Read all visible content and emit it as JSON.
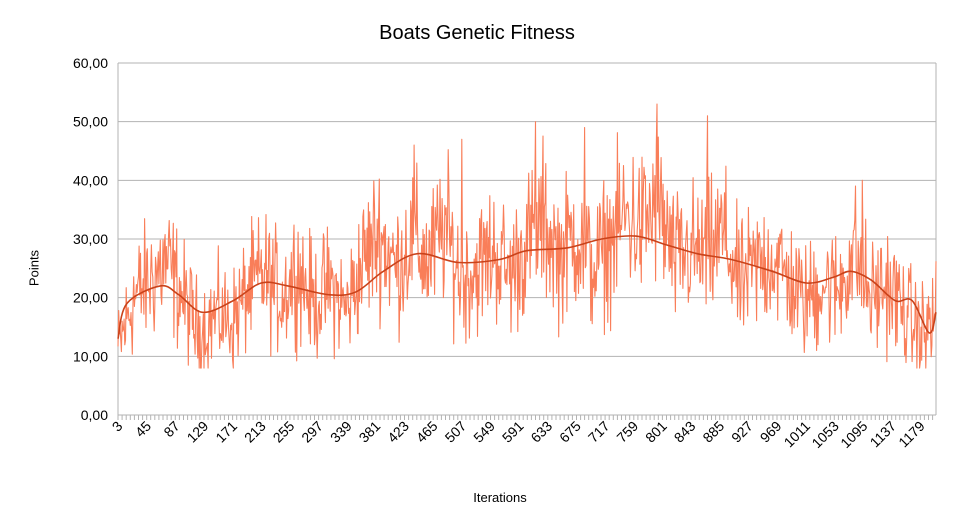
{
  "chart_data": {
    "type": "line",
    "title": "Boats Genetic Fitness",
    "xlabel": "Iterations",
    "ylabel": "Points",
    "ylim": [
      0,
      60
    ],
    "y_ticks": [
      "0,00",
      "10,00",
      "20,00",
      "30,00",
      "40,00",
      "50,00",
      "60,00"
    ],
    "x_tick_labels": [
      "3",
      "45",
      "87",
      "129",
      "171",
      "213",
      "255",
      "297",
      "339",
      "381",
      "423",
      "465",
      "507",
      "549",
      "591",
      "633",
      "675",
      "717",
      "759",
      "801",
      "843",
      "885",
      "927",
      "969",
      "1011",
      "1053",
      "1095",
      "1137",
      "1179"
    ],
    "x_range": [
      1,
      1200
    ],
    "grid": true,
    "legend": "none",
    "series": [
      {
        "role": "raw fitness per iteration",
        "color": "#f97e59",
        "x": [
          1,
          24,
          48,
          72,
          96,
          120,
          144,
          168,
          192,
          216,
          240,
          264,
          288,
          312,
          336,
          360,
          384,
          408,
          432,
          456,
          480,
          504,
          528,
          552,
          576,
          600,
          624,
          648,
          672,
          696,
          720,
          744,
          768,
          792,
          816,
          840,
          864,
          888,
          912,
          936,
          960,
          984,
          1008,
          1032,
          1056,
          1080,
          1104,
          1128,
          1152,
          1176,
          1200
        ],
        "y": [
          13,
          22,
          25,
          28,
          22,
          16,
          19,
          18,
          23,
          26,
          22,
          27,
          21,
          24,
          20,
          28,
          33,
          27,
          32,
          28,
          34,
          25,
          27,
          30,
          26,
          31,
          35,
          29,
          33,
          27,
          31,
          36,
          34,
          38,
          28,
          30,
          29,
          33,
          24,
          27,
          29,
          25,
          21,
          25,
          23,
          30,
          22,
          24,
          20,
          16,
          19
        ],
        "peaks": [
          {
            "x": 130,
            "y": 11
          },
          {
            "x": 435,
            "y": 46
          },
          {
            "x": 505,
            "y": 47
          },
          {
            "x": 613,
            "y": 50
          },
          {
            "x": 685,
            "y": 49
          },
          {
            "x": 791,
            "y": 53
          },
          {
            "x": 865,
            "y": 51
          },
          {
            "x": 1025,
            "y": 11
          },
          {
            "x": 1092,
            "y": 40
          },
          {
            "x": 1185,
            "y": 8
          }
        ]
      },
      {
        "role": "smoothed trend",
        "color": "#c9421a",
        "x": [
          1,
          14,
          63,
          90,
          125,
          170,
          211,
          250,
          310,
          350,
          390,
          440,
          500,
          560,
          600,
          660,
          710,
          760,
          805,
          850,
          900,
          960,
          1010,
          1050,
          1075,
          1105,
          1140,
          1165,
          1190,
          1200
        ],
        "y": [
          13,
          19,
          22,
          20.5,
          17.5,
          19.5,
          22.5,
          22,
          20.5,
          21,
          24.5,
          27.5,
          26,
          26.5,
          28,
          28.5,
          30,
          30.5,
          29,
          27.5,
          26.5,
          24.5,
          22.5,
          23.5,
          24.5,
          23,
          19.5,
          19.5,
          14,
          17.5
        ]
      }
    ]
  }
}
